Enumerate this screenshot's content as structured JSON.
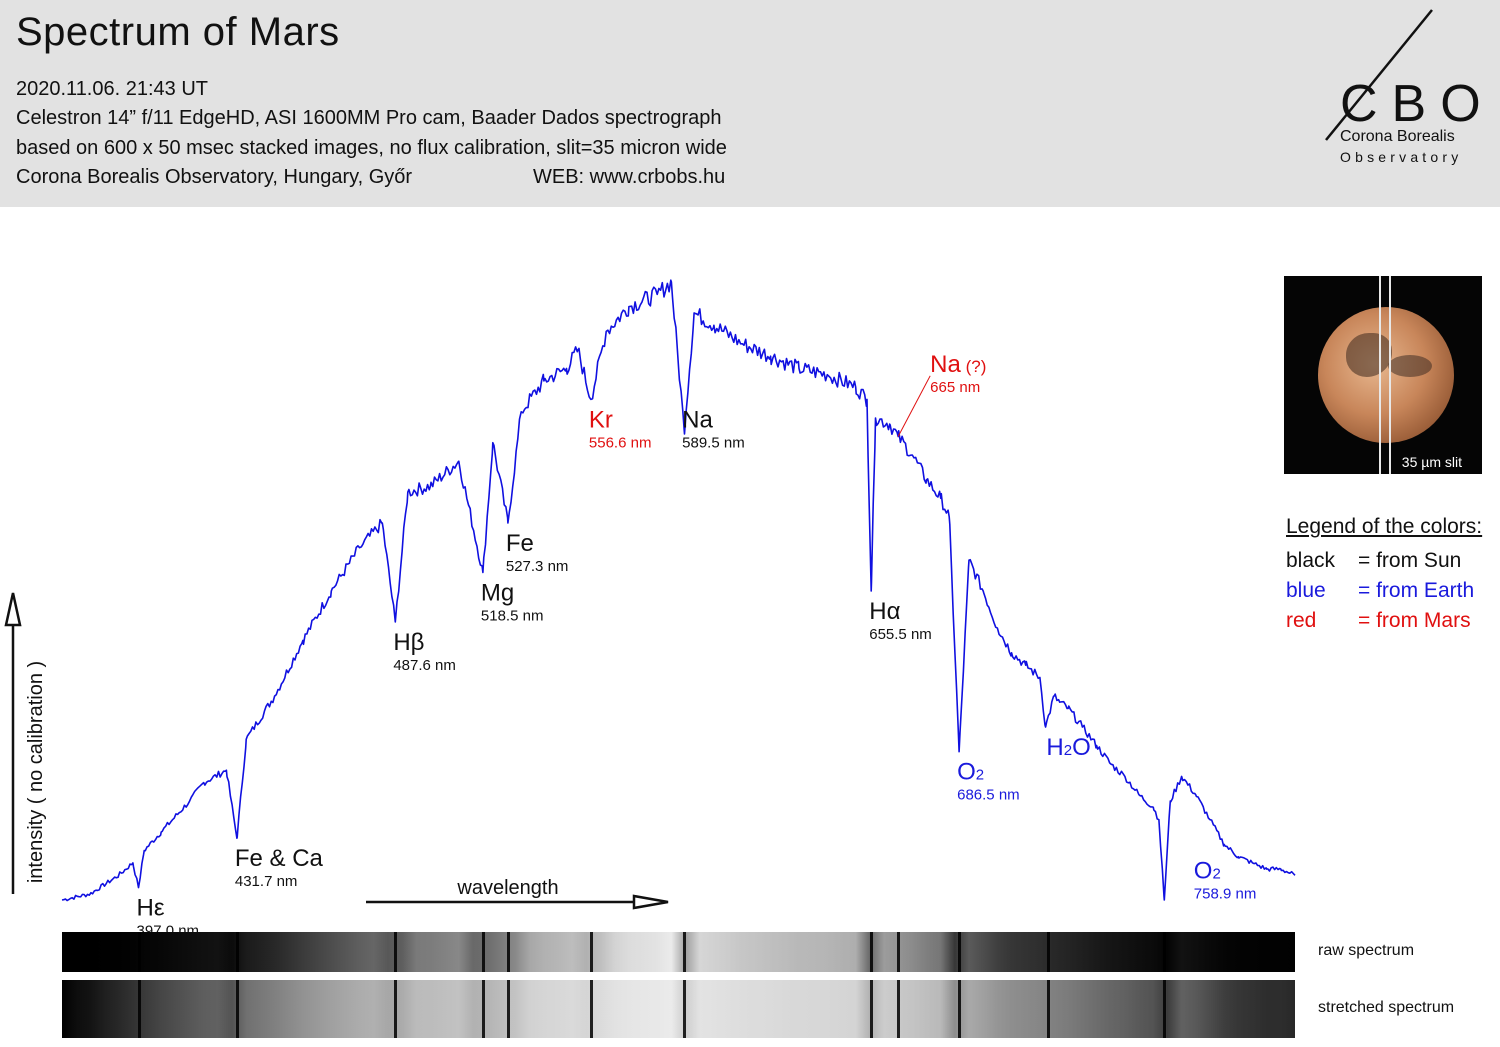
{
  "header": {
    "title": "Spectrum of Mars",
    "lines": [
      "2020.11.06.  21:43 UT",
      "Celestron 14” f/11 EdgeHD,  ASI 1600MM Pro cam,  Baader Dados spectrograph",
      "based on 600 x 50 msec stacked images, no flux calibration, slit=35 micron wide",
      "Corona Borealis Observatory, Hungary, Győr"
    ],
    "web": "WEB: www.crbobs.hu"
  },
  "logo": {
    "letters": "CBO",
    "line1": "Corona Borealis",
    "line2": "Observatory"
  },
  "mars_inset": {
    "slit_label": "35 µm slit"
  },
  "legend": {
    "title": "Legend of the colors:",
    "items": [
      {
        "key": "black",
        "value": "= from Sun",
        "color": "#111111"
      },
      {
        "key": "blue",
        "value": "= from Earth",
        "color": "#1a1adc"
      },
      {
        "key": "red",
        "value": "= from Mars",
        "color": "#e01010"
      }
    ]
  },
  "strips": {
    "raw_label": "raw  spectrum",
    "stretched_label": "stretched  spectrum"
  },
  "colors": {
    "line": "#1010e0",
    "sun": "#111111",
    "earth": "#1a1adc",
    "mars": "#e01010"
  },
  "chart_data": {
    "type": "line",
    "title": "Spectrum of Mars",
    "xlabel": "wavelength",
    "ylabel": "intensity ( no calibration )",
    "x_unit": "nm",
    "xlim": [
      370,
      805
    ],
    "ylim": [
      0,
      1
    ],
    "series": [
      {
        "x": [
          370,
          380,
          390,
          395,
          397,
          399,
          405,
          415,
          420,
          428,
          431.7,
          435,
          445,
          455,
          465,
          475,
          483,
          487.6,
          492,
          500,
          510,
          518.5,
          522,
          527.3,
          532,
          540,
          548,
          552,
          556.6,
          562,
          570,
          580,
          585,
          589.5,
          593,
          600,
          610,
          620,
          630,
          640,
          650,
          654,
          655.5,
          657,
          662,
          665,
          670,
          675,
          680,
          683,
          686.5,
          690,
          695,
          700,
          705,
          710,
          715,
          717,
          720,
          722,
          725,
          730,
          735,
          740,
          745,
          750,
          755,
          757,
          758.9,
          761,
          765,
          770,
          775,
          780,
          785,
          790,
          795,
          800,
          805
        ],
        "y": [
          0.0,
          0.01,
          0.04,
          0.06,
          0.02,
          0.08,
          0.11,
          0.16,
          0.19,
          0.21,
          0.1,
          0.26,
          0.33,
          0.42,
          0.5,
          0.57,
          0.61,
          0.45,
          0.66,
          0.67,
          0.71,
          0.53,
          0.74,
          0.61,
          0.79,
          0.84,
          0.86,
          0.89,
          0.81,
          0.92,
          0.96,
          0.98,
          1.0,
          0.76,
          0.95,
          0.93,
          0.9,
          0.88,
          0.86,
          0.85,
          0.83,
          0.81,
          0.5,
          0.78,
          0.77,
          0.75,
          0.72,
          0.68,
          0.65,
          0.62,
          0.24,
          0.55,
          0.5,
          0.44,
          0.4,
          0.38,
          0.36,
          0.28,
          0.33,
          0.32,
          0.31,
          0.28,
          0.25,
          0.22,
          0.2,
          0.17,
          0.15,
          0.13,
          0.0,
          0.16,
          0.2,
          0.17,
          0.13,
          0.09,
          0.07,
          0.06,
          0.05,
          0.05,
          0.04
        ]
      }
    ],
    "annotations": [
      {
        "symbol": "Hε",
        "sub": "",
        "symbol_suffix": "",
        "wavelength": "397.0 nm",
        "x": 397.0,
        "origin": "sun",
        "label_x": 397.0,
        "label_y": 0.02
      },
      {
        "symbol": "Fe & Ca",
        "sub": "",
        "symbol_suffix": "",
        "wavelength": "431.7 nm",
        "x": 431.7,
        "origin": "sun",
        "label_x": 431.7,
        "label_y": 0.1
      },
      {
        "symbol": "Hβ",
        "sub": "",
        "symbol_suffix": "",
        "wavelength": "487.6 nm",
        "x": 487.6,
        "origin": "sun",
        "label_x": 487.6,
        "label_y": 0.45
      },
      {
        "symbol": "Mg",
        "sub": "",
        "symbol_suffix": "",
        "wavelength": "518.5 nm",
        "x": 518.5,
        "origin": "sun",
        "label_x": 518.5,
        "label_y": 0.53
      },
      {
        "symbol": "Fe",
        "sub": "",
        "symbol_suffix": "",
        "wavelength": "527.3 nm",
        "x": 527.3,
        "origin": "sun",
        "label_x": 527.3,
        "label_y": 0.61
      },
      {
        "symbol": "Kr",
        "sub": "",
        "symbol_suffix": "",
        "wavelength": "556.6 nm",
        "x": 556.6,
        "origin": "mars",
        "label_x": 556.6,
        "label_y": 0.81
      },
      {
        "symbol": "Na",
        "sub": "",
        "symbol_suffix": "",
        "wavelength": "589.5 nm",
        "x": 589.5,
        "origin": "sun",
        "label_x": 589.5,
        "label_y": 0.81
      },
      {
        "symbol": "Hα",
        "sub": "",
        "symbol_suffix": "",
        "wavelength": "655.5 nm",
        "x": 655.5,
        "origin": "sun",
        "label_x": 655.5,
        "label_y": 0.5
      },
      {
        "symbol": "Na",
        "sub": "",
        "symbol_suffix": " (?)",
        "wavelength": "665 nm",
        "x": 665.0,
        "origin": "mars",
        "label_x": 677.0,
        "label_y": 0.9
      },
      {
        "symbol": "O",
        "sub": "2",
        "symbol_suffix": "",
        "wavelength": "686.5 nm",
        "x": 686.5,
        "origin": "earth",
        "label_x": 686.5,
        "label_y": 0.24
      },
      {
        "symbol": "H",
        "sub": "2",
        "symbol_suffix": "O",
        "wavelength": "",
        "x": 718.0,
        "origin": "earth",
        "label_x": 718.0,
        "label_y": 0.28
      },
      {
        "symbol": "O",
        "sub": "2",
        "symbol_suffix": "",
        "wavelength": "758.9 nm",
        "x": 758.9,
        "origin": "earth",
        "label_x": 770.0,
        "label_y": 0.08
      }
    ]
  }
}
